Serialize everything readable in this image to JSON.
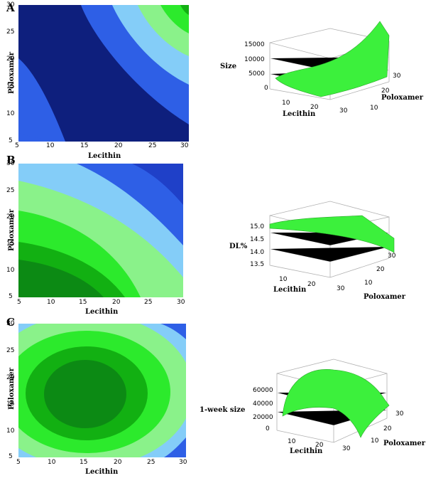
{
  "colors": {
    "level_1": "#0e1f7d",
    "level_2": "#2e5fe6",
    "level_3": "#84cdf8",
    "level_4": "#8af28a",
    "level_5": "#2cea2c",
    "level_6": "#12b012",
    "level_7": "#0c8a14",
    "surface_fill": "#3cf03c",
    "surface_edge": "#2aa82a",
    "box_line": "#b0b0b0"
  },
  "chart_data": [
    {
      "panel": "A",
      "type": "contour",
      "xlabel": "Lecithin",
      "ylabel": "Poloxamer",
      "xticks": [
        "5",
        "10",
        "15",
        "20",
        "25",
        "30"
      ],
      "yticks": [
        "5",
        "10",
        "15",
        "20",
        "25",
        "30"
      ],
      "xlim": [
        5,
        30
      ],
      "ylim": [
        5,
        30
      ],
      "response": "Size"
    },
    {
      "panel": "A",
      "type": "surface",
      "zlabel": "Size",
      "xlabel": "Lecithin",
      "ylabel": "Poloxamer",
      "zticks": [
        "15000",
        "10000",
        "5000",
        "0"
      ],
      "xticks": [
        "10",
        "20",
        "30"
      ],
      "yticks": [
        "10",
        "20",
        "30"
      ]
    },
    {
      "panel": "B",
      "type": "contour",
      "xlabel": "Lecithin",
      "ylabel": "Poloxamer",
      "xticks": [
        "5",
        "10",
        "15",
        "20",
        "25",
        "30"
      ],
      "yticks": [
        "5",
        "10",
        "15",
        "20",
        "25",
        "30"
      ],
      "xlim": [
        5,
        30
      ],
      "ylim": [
        5,
        30
      ],
      "response": "DL%"
    },
    {
      "panel": "B",
      "type": "surface",
      "zlabel": "DL%",
      "xlabel": "Lecithin",
      "ylabel": "Poloxamer",
      "zticks": [
        "15.0",
        "14.5",
        "14.0",
        "13.5"
      ],
      "xticks": [
        "10",
        "20",
        "30"
      ],
      "yticks": [
        "10",
        "20",
        "30"
      ]
    },
    {
      "panel": "C",
      "type": "contour",
      "xlabel": "Lecithin",
      "ylabel": "Poloxamer",
      "xticks": [
        "5",
        "10",
        "15",
        "20",
        "25",
        "30"
      ],
      "yticks": [
        "5",
        "10",
        "15",
        "20",
        "25",
        "30"
      ],
      "xlim": [
        5,
        30
      ],
      "ylim": [
        5,
        30
      ],
      "response": "1-week size"
    },
    {
      "panel": "C",
      "type": "surface",
      "zlabel": "1-week size",
      "xlabel": "Lecithin",
      "ylabel": "Poloxamer",
      "zticks": [
        "60000",
        "40000",
        "20000",
        "0"
      ],
      "xticks": [
        "10",
        "20",
        "30"
      ],
      "yticks": [
        "10",
        "20",
        "30"
      ]
    }
  ],
  "panels": {
    "a": {
      "letter": "A"
    },
    "b": {
      "letter": "B"
    },
    "c": {
      "letter": "C"
    }
  }
}
